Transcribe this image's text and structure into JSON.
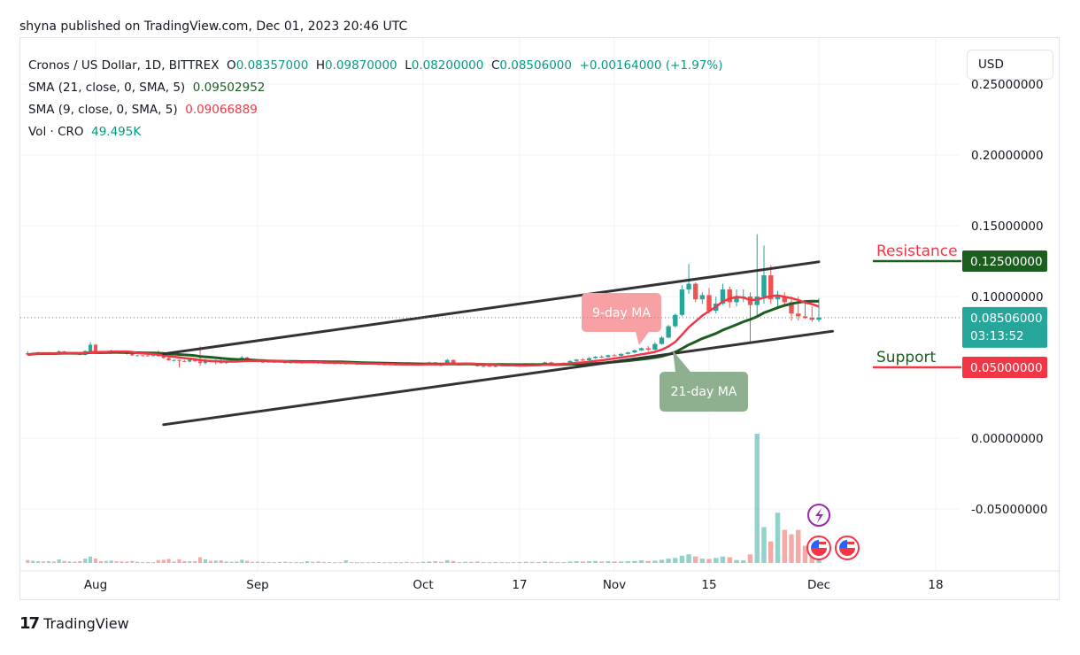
{
  "header": {
    "published": "shyna published on TradingView.com, Dec 01, 2023 20:46 UTC"
  },
  "legend": {
    "symbol": "Cronos / US Dollar, 1D, BITTREX",
    "o_label": "O",
    "o": "0.08357000",
    "h_label": "H",
    "h": "0.09870000",
    "l_label": "L",
    "l": "0.08200000",
    "c_label": "C",
    "c": "0.08506000",
    "change": "+0.00164000 (+1.97%)",
    "sma21_label": "SMA (21, close, 0, SMA, 5)",
    "sma21_value": "0.09502952",
    "sma9_label": "SMA (9, close, 0, SMA, 5)",
    "sma9_value": "0.09066889",
    "vol_label": "Vol · CRO",
    "vol_value": "49.495K"
  },
  "currency_button": "USD",
  "footer": {
    "logo_text": "TradingView"
  },
  "colors": {
    "up": "#26a69a",
    "down": "#ef5350",
    "sma21": "#1b5e20",
    "sma9": "#f23645",
    "resistance": "#1b5e20",
    "support": "#f23645",
    "current": "#26a69a"
  },
  "chart_data": {
    "type": "candlestick",
    "start_date": "2023-07-19",
    "interval": "1D",
    "ylim": [
      -0.1,
      0.26
    ],
    "y_ticks": [
      "0.25000000",
      "0.20000000",
      "0.15000000",
      "0.10000000",
      "0.00000000",
      "-0.05000000"
    ],
    "y_tick_values": [
      0.25,
      0.2,
      0.15,
      0.1,
      0.0,
      -0.05
    ],
    "x_ticks": [
      {
        "label": "Aug",
        "date": "2023-08-01"
      },
      {
        "label": "Sep",
        "date": "2023-09-01"
      },
      {
        "label": "Oct",
        "date": "2023-10-01"
      },
      {
        "label": "17",
        "date": "2023-10-17"
      },
      {
        "label": "Nov",
        "date": "2023-11-01"
      },
      {
        "label": "15",
        "date": "2023-11-15"
      },
      {
        "label": "Dec",
        "date": "2023-12-01"
      },
      {
        "label": "18",
        "date": "2023-12-18"
      }
    ],
    "grid": true,
    "volume_unit": "K",
    "candles_ohlcv": [
      [
        0.06,
        0.0615,
        0.0585,
        0.059,
        20
      ],
      [
        0.059,
        0.0605,
        0.0585,
        0.0598,
        15
      ],
      [
        0.0598,
        0.061,
        0.059,
        0.0602,
        12
      ],
      [
        0.0602,
        0.0608,
        0.0595,
        0.0597,
        10
      ],
      [
        0.0597,
        0.0605,
        0.059,
        0.06,
        12
      ],
      [
        0.06,
        0.0604,
        0.0592,
        0.0594,
        10
      ],
      [
        0.0594,
        0.062,
        0.059,
        0.0612,
        25
      ],
      [
        0.0612,
        0.0615,
        0.0598,
        0.06,
        14
      ],
      [
        0.06,
        0.0606,
        0.0594,
        0.0603,
        10
      ],
      [
        0.0603,
        0.0607,
        0.0596,
        0.0598,
        9
      ],
      [
        0.0598,
        0.06,
        0.0585,
        0.0588,
        12
      ],
      [
        0.0588,
        0.062,
        0.0585,
        0.0615,
        30
      ],
      [
        0.0615,
        0.068,
        0.0605,
        0.066,
        45
      ],
      [
        0.066,
        0.0665,
        0.06,
        0.0605,
        30
      ],
      [
        0.0605,
        0.0612,
        0.0595,
        0.0598,
        12
      ],
      [
        0.0598,
        0.0615,
        0.0595,
        0.061,
        14
      ],
      [
        0.061,
        0.0625,
        0.0605,
        0.0618,
        16
      ],
      [
        0.0618,
        0.062,
        0.0605,
        0.0608,
        12
      ],
      [
        0.0608,
        0.0612,
        0.0596,
        0.06,
        10
      ],
      [
        0.06,
        0.0604,
        0.059,
        0.0594,
        10
      ],
      [
        0.0594,
        0.0598,
        0.058,
        0.0584,
        14
      ],
      [
        0.0584,
        0.0588,
        0.058,
        0.0585,
        8
      ],
      [
        0.0585,
        0.0588,
        0.0582,
        0.0584,
        6
      ],
      [
        0.0584,
        0.0587,
        0.058,
        0.0583,
        6
      ],
      [
        0.0583,
        0.0586,
        0.058,
        0.0585,
        5
      ],
      [
        0.0585,
        0.062,
        0.0575,
        0.058,
        20
      ],
      [
        0.058,
        0.059,
        0.056,
        0.0566,
        22
      ],
      [
        0.0566,
        0.057,
        0.0545,
        0.055,
        28
      ],
      [
        0.055,
        0.0556,
        0.054,
        0.0552,
        10
      ],
      [
        0.0552,
        0.0555,
        0.05,
        0.0545,
        26
      ],
      [
        0.0545,
        0.0552,
        0.0538,
        0.054,
        12
      ],
      [
        0.054,
        0.056,
        0.0535,
        0.0555,
        12
      ],
      [
        0.0555,
        0.0558,
        0.054,
        0.0542,
        12
      ],
      [
        0.0542,
        0.0648,
        0.051,
        0.053,
        40
      ],
      [
        0.053,
        0.056,
        0.052,
        0.055,
        25
      ],
      [
        0.055,
        0.0555,
        0.0535,
        0.0538,
        14
      ],
      [
        0.0538,
        0.0555,
        0.052,
        0.0542,
        16
      ],
      [
        0.0542,
        0.056,
        0.0525,
        0.053,
        18
      ],
      [
        0.053,
        0.0545,
        0.0525,
        0.054,
        10
      ],
      [
        0.054,
        0.055,
        0.0535,
        0.0545,
        8
      ],
      [
        0.0545,
        0.056,
        0.054,
        0.055,
        10
      ],
      [
        0.055,
        0.058,
        0.054,
        0.057,
        22
      ],
      [
        0.057,
        0.0575,
        0.0545,
        0.0548,
        15
      ],
      [
        0.0548,
        0.0552,
        0.054,
        0.0545,
        8
      ],
      [
        0.0545,
        0.055,
        0.0535,
        0.0538,
        9
      ],
      [
        0.0538,
        0.0545,
        0.053,
        0.054,
        8
      ],
      [
        0.054,
        0.0545,
        0.0535,
        0.0537,
        6
      ],
      [
        0.0537,
        0.0542,
        0.0532,
        0.054,
        6
      ],
      [
        0.054,
        0.0545,
        0.0535,
        0.0536,
        7
      ],
      [
        0.0536,
        0.054,
        0.053,
        0.0533,
        8
      ],
      [
        0.0533,
        0.0538,
        0.0528,
        0.0535,
        6
      ],
      [
        0.0535,
        0.054,
        0.053,
        0.0531,
        6
      ],
      [
        0.0531,
        0.0536,
        0.0526,
        0.0534,
        5
      ],
      [
        0.0534,
        0.0548,
        0.053,
        0.0544,
        12
      ],
      [
        0.0544,
        0.0548,
        0.0535,
        0.0538,
        8
      ],
      [
        0.0538,
        0.054,
        0.0525,
        0.0528,
        10
      ],
      [
        0.0528,
        0.0534,
        0.0524,
        0.0532,
        6
      ],
      [
        0.0532,
        0.0536,
        0.0526,
        0.0528,
        6
      ],
      [
        0.0528,
        0.0532,
        0.0522,
        0.053,
        5
      ],
      [
        0.053,
        0.0534,
        0.0524,
        0.0526,
        5
      ],
      [
        0.0526,
        0.053,
        0.052,
        0.0528,
        18
      ],
      [
        0.0528,
        0.0532,
        0.0522,
        0.0524,
        6
      ],
      [
        0.0524,
        0.0528,
        0.0518,
        0.0526,
        5
      ],
      [
        0.0526,
        0.053,
        0.052,
        0.0522,
        5
      ],
      [
        0.0522,
        0.0528,
        0.0518,
        0.0525,
        5
      ],
      [
        0.0525,
        0.053,
        0.052,
        0.0522,
        6
      ],
      [
        0.0522,
        0.0526,
        0.0516,
        0.052,
        6
      ],
      [
        0.052,
        0.0524,
        0.0514,
        0.0521,
        5
      ],
      [
        0.0521,
        0.0525,
        0.0515,
        0.0518,
        5
      ],
      [
        0.0518,
        0.0522,
        0.0512,
        0.052,
        6
      ],
      [
        0.052,
        0.0524,
        0.0514,
        0.0516,
        5
      ],
      [
        0.0516,
        0.0525,
        0.0512,
        0.0522,
        7
      ],
      [
        0.0522,
        0.0526,
        0.0516,
        0.0518,
        5
      ],
      [
        0.0518,
        0.0522,
        0.0512,
        0.052,
        5
      ],
      [
        0.052,
        0.053,
        0.0515,
        0.0526,
        8
      ],
      [
        0.0526,
        0.054,
        0.052,
        0.0535,
        10
      ],
      [
        0.0535,
        0.0538,
        0.0515,
        0.0518,
        12
      ],
      [
        0.0518,
        0.0522,
        0.051,
        0.0515,
        8
      ],
      [
        0.0515,
        0.056,
        0.0512,
        0.0552,
        20
      ],
      [
        0.0552,
        0.0555,
        0.0518,
        0.052,
        14
      ],
      [
        0.052,
        0.0524,
        0.0514,
        0.0518,
        6
      ],
      [
        0.0518,
        0.0535,
        0.0515,
        0.053,
        8
      ],
      [
        0.053,
        0.0534,
        0.0515,
        0.0518,
        7
      ],
      [
        0.0518,
        0.0522,
        0.0505,
        0.0508,
        10
      ],
      [
        0.0508,
        0.0512,
        0.0502,
        0.051,
        6
      ],
      [
        0.051,
        0.0514,
        0.0504,
        0.0506,
        5
      ],
      [
        0.0506,
        0.0512,
        0.05,
        0.051,
        6
      ],
      [
        0.051,
        0.0518,
        0.0505,
        0.0515,
        6
      ],
      [
        0.0515,
        0.052,
        0.051,
        0.0512,
        5
      ],
      [
        0.0512,
        0.0518,
        0.0508,
        0.0516,
        5
      ],
      [
        0.0516,
        0.052,
        0.051,
        0.0512,
        6
      ],
      [
        0.0512,
        0.053,
        0.0508,
        0.0525,
        8
      ],
      [
        0.0525,
        0.053,
        0.0515,
        0.0518,
        7
      ],
      [
        0.0518,
        0.0525,
        0.0512,
        0.0522,
        6
      ],
      [
        0.0522,
        0.054,
        0.0518,
        0.0535,
        10
      ],
      [
        0.0535,
        0.054,
        0.052,
        0.0525,
        8
      ],
      [
        0.0525,
        0.053,
        0.0515,
        0.0528,
        6
      ],
      [
        0.0528,
        0.0535,
        0.0522,
        0.0532,
        6
      ],
      [
        0.0532,
        0.055,
        0.0528,
        0.0545,
        10
      ],
      [
        0.0545,
        0.056,
        0.054,
        0.0555,
        12
      ],
      [
        0.0555,
        0.0565,
        0.0545,
        0.055,
        10
      ],
      [
        0.055,
        0.057,
        0.0545,
        0.0565,
        12
      ],
      [
        0.0565,
        0.058,
        0.056,
        0.0575,
        14
      ],
      [
        0.0575,
        0.0585,
        0.0565,
        0.0572,
        10
      ],
      [
        0.0572,
        0.059,
        0.057,
        0.0585,
        12
      ],
      [
        0.0585,
        0.0595,
        0.0578,
        0.0582,
        10
      ],
      [
        0.0582,
        0.06,
        0.0578,
        0.0595,
        10
      ],
      [
        0.0595,
        0.061,
        0.059,
        0.0605,
        12
      ],
      [
        0.0605,
        0.0625,
        0.06,
        0.062,
        14
      ],
      [
        0.062,
        0.064,
        0.0615,
        0.0635,
        18
      ],
      [
        0.0635,
        0.065,
        0.061,
        0.0625,
        14
      ],
      [
        0.0625,
        0.068,
        0.062,
        0.0665,
        16
      ],
      [
        0.0665,
        0.072,
        0.066,
        0.071,
        22
      ],
      [
        0.071,
        0.08,
        0.0705,
        0.079,
        30
      ],
      [
        0.079,
        0.088,
        0.078,
        0.087,
        35
      ],
      [
        0.087,
        0.108,
        0.086,
        0.105,
        50
      ],
      [
        0.105,
        0.123,
        0.102,
        0.109,
        60
      ],
      [
        0.109,
        0.11,
        0.096,
        0.098,
        45
      ],
      [
        0.098,
        0.103,
        0.095,
        0.101,
        30
      ],
      [
        0.101,
        0.106,
        0.088,
        0.09,
        28
      ],
      [
        0.09,
        0.1,
        0.088,
        0.095,
        35
      ],
      [
        0.095,
        0.109,
        0.094,
        0.105,
        45
      ],
      [
        0.105,
        0.107,
        0.092,
        0.096,
        40
      ],
      [
        0.096,
        0.105,
        0.093,
        0.099,
        20
      ],
      [
        0.099,
        0.105,
        0.096,
        0.1,
        18
      ],
      [
        0.1,
        0.103,
        0.068,
        0.094,
        60
      ],
      [
        0.094,
        0.144,
        0.086,
        0.1,
        900
      ],
      [
        0.1,
        0.136,
        0.095,
        0.115,
        250
      ],
      [
        0.115,
        0.122,
        0.095,
        0.098,
        150
      ],
      [
        0.098,
        0.104,
        0.093,
        0.1,
        350
      ],
      [
        0.1,
        0.103,
        0.094,
        0.096,
        230
      ],
      [
        0.096,
        0.1,
        0.083,
        0.088,
        200
      ],
      [
        0.088,
        0.1,
        0.083,
        0.086,
        230
      ],
      [
        0.086,
        0.096,
        0.084,
        0.085,
        120
      ],
      [
        0.085,
        0.093,
        0.082,
        0.0836,
        120
      ],
      [
        0.0836,
        0.0987,
        0.082,
        0.0851,
        49.5
      ]
    ],
    "indicators": [
      {
        "name": "SMA (21, close, 0, SMA, 5)",
        "period": 21,
        "color": "#1b5e20"
      },
      {
        "name": "SMA (9, close, 0, SMA, 5)",
        "period": 9,
        "color": "#f23645"
      }
    ],
    "channel": {
      "upper": [
        {
          "date": "2023-08-14",
          "price": 0.0595
        },
        {
          "date": "2023-12-01",
          "price": 0.1245
        }
      ],
      "lower": [
        {
          "date": "2023-08-14",
          "price": 0.0095
        },
        {
          "date": "2023-12-03",
          "price": 0.0755
        }
      ]
    },
    "annotations": [
      {
        "text": "9-day MA",
        "color": "#f7a1a5"
      },
      {
        "text": "21-day MA",
        "color": "#8fb08f"
      }
    ],
    "levels": [
      {
        "label": "Resistance",
        "price": 0.125,
        "price_label": "0.12500000",
        "line_color": "#1b5e20",
        "box_color": "#1b5e20",
        "text_color": "#f23645"
      },
      {
        "label": "Support",
        "price": 0.05,
        "price_label": "0.05000000",
        "line_color": "#f23645",
        "box_color": "#f23645",
        "text_color": "#1b5e20"
      }
    ],
    "current_price": {
      "value": 0.08506,
      "label": "0.08506000",
      "countdown": "03:13:52"
    }
  }
}
